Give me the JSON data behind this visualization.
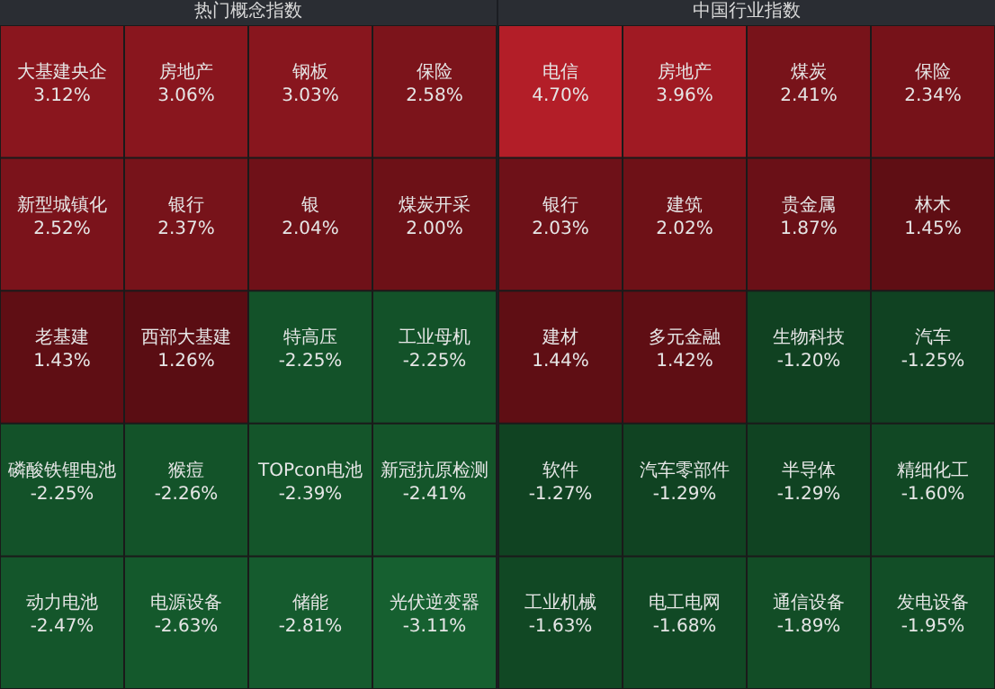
{
  "chart_data": [
    {
      "type": "other",
      "title": "热门概念指数",
      "categories": [
        "大基建央企",
        "房地产",
        "钢板",
        "保险",
        "新型城镇化",
        "银行",
        "银",
        "煤炭开采",
        "老基建",
        "西部大基建",
        "特高压",
        "工业母机",
        "磷酸铁锂电池",
        "猴痘",
        "TOPcon电池",
        "新冠抗原检测",
        "动力电池",
        "电源设备",
        "储能",
        "光伏逆变器"
      ],
      "values": [
        3.12,
        3.06,
        3.03,
        2.58,
        2.52,
        2.37,
        2.04,
        2.0,
        1.43,
        1.26,
        -2.25,
        -2.25,
        -2.25,
        -2.26,
        -2.39,
        -2.41,
        -2.47,
        -2.63,
        -2.81,
        -3.11
      ],
      "value_labels": [
        "3.12%",
        "3.06%",
        "3.03%",
        "2.58%",
        "2.52%",
        "2.37%",
        "2.04%",
        "2.00%",
        "1.43%",
        "1.26%",
        "-2.25%",
        "-2.25%",
        "-2.25%",
        "-2.26%",
        "-2.39%",
        "-2.41%",
        "-2.47%",
        "-2.63%",
        "-2.81%",
        "-3.11%"
      ]
    },
    {
      "type": "other",
      "title": "中国行业指数",
      "categories": [
        "电信",
        "房地产",
        "煤炭",
        "保险",
        "银行",
        "建筑",
        "贵金属",
        "林木",
        "建材",
        "多元金融",
        "生物科技",
        "汽车",
        "软件",
        "汽车零部件",
        "半导体",
        "精细化工",
        "工业机械",
        "电工电网",
        "通信设备",
        "发电设备"
      ],
      "values": [
        4.7,
        3.96,
        2.41,
        2.34,
        2.03,
        2.02,
        1.87,
        1.45,
        1.44,
        1.42,
        -1.2,
        -1.25,
        -1.27,
        -1.29,
        -1.29,
        -1.6,
        -1.63,
        -1.68,
        -1.89,
        -1.95
      ],
      "value_labels": [
        "4.70%",
        "3.96%",
        "2.41%",
        "2.34%",
        "2.03%",
        "2.02%",
        "1.87%",
        "1.45%",
        "1.44%",
        "1.42%",
        "-1.20%",
        "-1.25%",
        "-1.27%",
        "-1.29%",
        "-1.29%",
        "-1.60%",
        "-1.63%",
        "-1.68%",
        "-1.89%",
        "-1.95%"
      ]
    }
  ]
}
